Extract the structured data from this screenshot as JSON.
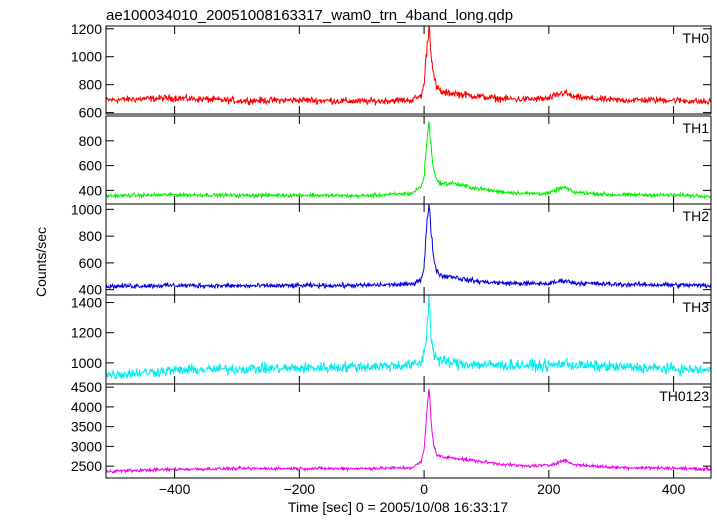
{
  "chart_data": {
    "type": "line",
    "title": "ae100034010_20051008163317_wam0_trn_4band_long.qdp",
    "xlabel": "Time [sec] 0 = 2005/10/08 16:33:17",
    "ylabel": "Counts/sec",
    "xlim": [
      -510,
      460
    ],
    "x_ticks": [
      -400,
      -200,
      0,
      200,
      400
    ],
    "x_tick_labels": [
      "−400",
      "−200",
      "0",
      "200",
      "400"
    ],
    "grid": false,
    "legend": "none",
    "panels": [
      {
        "name": "TH0",
        "color": "#ff0000",
        "ylim": [
          590,
          1220
        ],
        "y_ticks": [
          600,
          800,
          1000,
          1200
        ],
        "y_tick_labels": [
          "600",
          "800",
          "1000",
          "1200"
        ],
        "baseline": 690,
        "noise": 28,
        "x": [
          -510,
          -400,
          -300,
          -200,
          -100,
          -20,
          -5,
          0,
          4,
          8,
          12,
          16,
          20,
          30,
          45,
          60,
          80,
          120,
          160,
          200,
          215,
          225,
          240,
          300,
          400,
          460
        ],
        "y": [
          690,
          705,
          685,
          690,
          680,
          690,
          720,
          800,
          1050,
          1220,
          1000,
          850,
          780,
          740,
          740,
          730,
          720,
          700,
          695,
          700,
          730,
          745,
          710,
          690,
          690,
          675
        ]
      },
      {
        "name": "TH1",
        "color": "#00ee00",
        "ylim": [
          290,
          1000
        ],
        "y_ticks": [
          400,
          600,
          800
        ],
        "y_tick_labels": [
          "400",
          "600",
          "800"
        ],
        "baseline": 360,
        "noise": 18,
        "x": [
          -510,
          -400,
          -300,
          -200,
          -100,
          -20,
          -5,
          0,
          4,
          8,
          12,
          16,
          20,
          30,
          45,
          60,
          80,
          120,
          160,
          200,
          215,
          225,
          240,
          300,
          400,
          460
        ],
        "y": [
          355,
          365,
          360,
          362,
          355,
          375,
          430,
          500,
          780,
          960,
          700,
          560,
          480,
          450,
          460,
          440,
          420,
          390,
          375,
          375,
          410,
          425,
          385,
          365,
          362,
          355
        ]
      },
      {
        "name": "TH2",
        "color": "#0000dd",
        "ylim": [
          360,
          1040
        ],
        "y_ticks": [
          400,
          600,
          800,
          1000
        ],
        "y_tick_labels": [
          "400",
          "600",
          "800",
          "1000"
        ],
        "baseline": 430,
        "noise": 20,
        "x": [
          -510,
          -400,
          -300,
          -200,
          -100,
          -20,
          -5,
          0,
          4,
          8,
          12,
          16,
          20,
          30,
          45,
          60,
          80,
          120,
          160,
          200,
          215,
          225,
          240,
          300,
          400,
          460
        ],
        "y": [
          425,
          432,
          428,
          430,
          432,
          440,
          480,
          560,
          880,
          1030,
          800,
          620,
          540,
          500,
          500,
          480,
          465,
          450,
          445,
          445,
          460,
          470,
          450,
          440,
          435,
          430
        ]
      },
      {
        "name": "TH3",
        "color": "#00eeee",
        "ylim": [
          860,
          1450
        ],
        "y_ticks": [
          1000,
          1200,
          1400
        ],
        "y_tick_labels": [
          "1000",
          "1200",
          "1400"
        ],
        "baseline": 950,
        "noise": 40,
        "x": [
          -510,
          -400,
          -300,
          -200,
          -100,
          -20,
          -5,
          0,
          4,
          8,
          12,
          16,
          20,
          30,
          45,
          60,
          80,
          120,
          160,
          200,
          215,
          225,
          240,
          300,
          400,
          460
        ],
        "y": [
          920,
          950,
          960,
          965,
          975,
          985,
          1000,
          1060,
          1200,
          1430,
          1150,
          1060,
          1030,
          1010,
          1000,
          995,
          990,
          985,
          985,
          980,
          990,
          1000,
          985,
          975,
          960,
          950
        ]
      },
      {
        "name": "TH0123",
        "color": "#ee00ee",
        "ylim": [
          2200,
          4580
        ],
        "y_ticks": [
          2500,
          3000,
          3500,
          4000,
          4500
        ],
        "y_tick_labels": [
          "2500",
          "3000",
          "3500",
          "4000",
          "4500"
        ],
        "baseline": 2420,
        "noise": 45,
        "x": [
          -510,
          -400,
          -300,
          -200,
          -100,
          -20,
          -5,
          0,
          4,
          8,
          12,
          16,
          20,
          30,
          45,
          60,
          80,
          120,
          160,
          200,
          215,
          225,
          240,
          300,
          400,
          460
        ],
        "y": [
          2370,
          2420,
          2440,
          2440,
          2440,
          2460,
          2600,
          2900,
          3800,
          4500,
          3500,
          3000,
          2800,
          2720,
          2720,
          2680,
          2640,
          2560,
          2500,
          2520,
          2600,
          2650,
          2540,
          2470,
          2450,
          2420
        ]
      }
    ]
  }
}
